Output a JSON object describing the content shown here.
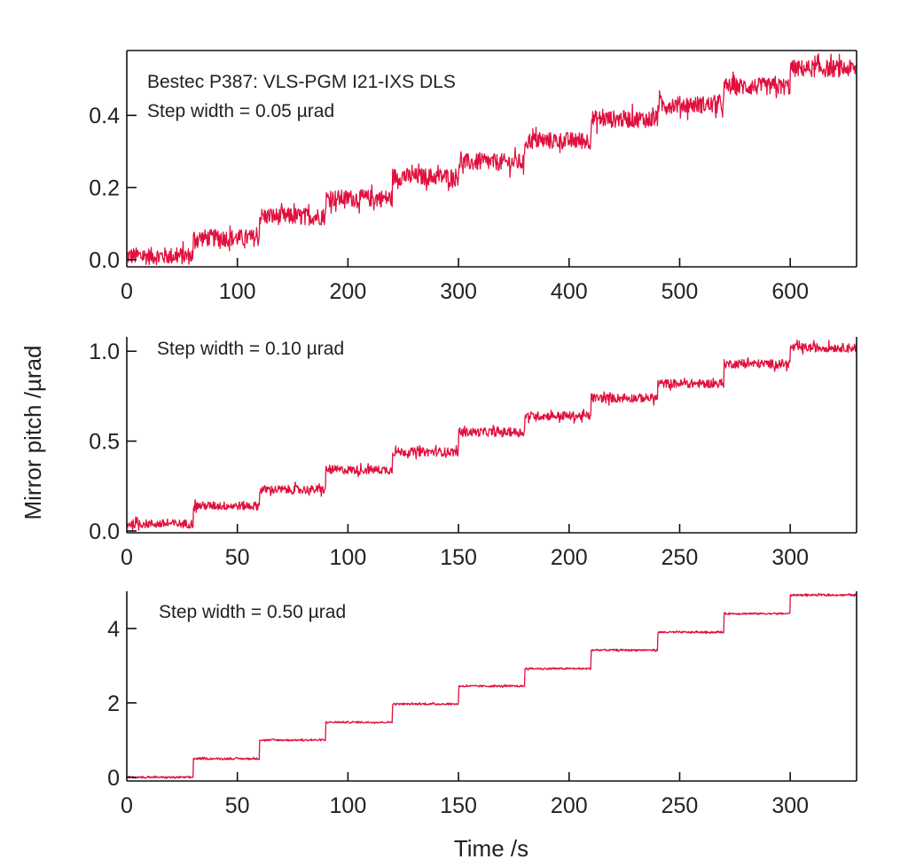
{
  "figure": {
    "ylabel": "Mirror pitch /µrad",
    "xlabel": "Time /s",
    "line_color": "#e0103e"
  },
  "chart_data": [
    {
      "type": "line",
      "title": "Bestec P387: VLS-PGM I21-IXS DLS",
      "annotations": [
        "Bestec P387: VLS-PGM I21-IXS DLS",
        "Step width = 0.05 µrad"
      ],
      "xlabel": "Time /s",
      "ylabel": "Mirror pitch /µrad",
      "xlim": [
        0,
        660
      ],
      "ylim": [
        -0.02,
        0.58
      ],
      "xticks": [
        0,
        100,
        200,
        300,
        400,
        500,
        600
      ],
      "xtick_labels": [
        "0",
        "100",
        "200",
        "300",
        "400",
        "500",
        "600"
      ],
      "yticks": [
        0.0,
        0.2,
        0.4
      ],
      "ytick_labels": [
        "0.0",
        "0.2",
        "0.4"
      ],
      "grid": false,
      "series": [
        {
          "name": "Step width 0.05 µrad",
          "step_interval_s": 60,
          "step_start_times_s": [
            0,
            60,
            120,
            180,
            240,
            300,
            360,
            420,
            480,
            540,
            600
          ],
          "step_levels": [
            0.01,
            0.06,
            0.12,
            0.17,
            0.23,
            0.27,
            0.33,
            0.39,
            0.43,
            0.48,
            0.53
          ],
          "noise_amplitude": 0.03,
          "end_time_s": 660
        }
      ]
    },
    {
      "type": "line",
      "annotations": [
        "Step width = 0.10 µrad"
      ],
      "xlabel": "Time /s",
      "ylabel": "Mirror pitch /µrad",
      "xlim": [
        0,
        330
      ],
      "ylim": [
        -0.01,
        1.08
      ],
      "xticks": [
        0,
        50,
        100,
        150,
        200,
        250,
        300
      ],
      "xtick_labels": [
        "0",
        "50",
        "100",
        "150",
        "200",
        "250",
        "300"
      ],
      "yticks": [
        0.0,
        0.5,
        1.0
      ],
      "ytick_labels": [
        "0.0",
        "0.5",
        "1.0"
      ],
      "grid": false,
      "series": [
        {
          "name": "Step width 0.10 µrad",
          "step_interval_s": 30,
          "step_start_times_s": [
            0,
            30,
            60,
            90,
            120,
            150,
            180,
            210,
            240,
            270,
            300
          ],
          "step_levels": [
            0.04,
            0.14,
            0.23,
            0.34,
            0.44,
            0.55,
            0.64,
            0.74,
            0.82,
            0.93,
            1.02
          ],
          "noise_amplitude": 0.03,
          "end_time_s": 330
        }
      ]
    },
    {
      "type": "line",
      "annotations": [
        "Step width = 0.50 µrad"
      ],
      "xlabel": "Time /s",
      "ylabel": "Mirror pitch /µrad",
      "xlim": [
        0,
        330
      ],
      "ylim": [
        -0.1,
        5.0
      ],
      "xticks": [
        0,
        50,
        100,
        150,
        200,
        250,
        300
      ],
      "xtick_labels": [
        "0",
        "50",
        "100",
        "150",
        "200",
        "250",
        "300"
      ],
      "yticks": [
        0,
        2,
        4
      ],
      "ytick_labels": [
        "0",
        "2",
        "4"
      ],
      "grid": false,
      "series": [
        {
          "name": "Step width 0.50 µrad",
          "step_interval_s": 30,
          "step_start_times_s": [
            0,
            30,
            60,
            90,
            120,
            150,
            180,
            210,
            240,
            270,
            300
          ],
          "step_levels": [
            0.0,
            0.5,
            1.0,
            1.48,
            1.97,
            2.45,
            2.92,
            3.42,
            3.9,
            4.4,
            4.9
          ],
          "noise_amplitude": 0.03,
          "end_time_s": 330
        }
      ]
    }
  ]
}
